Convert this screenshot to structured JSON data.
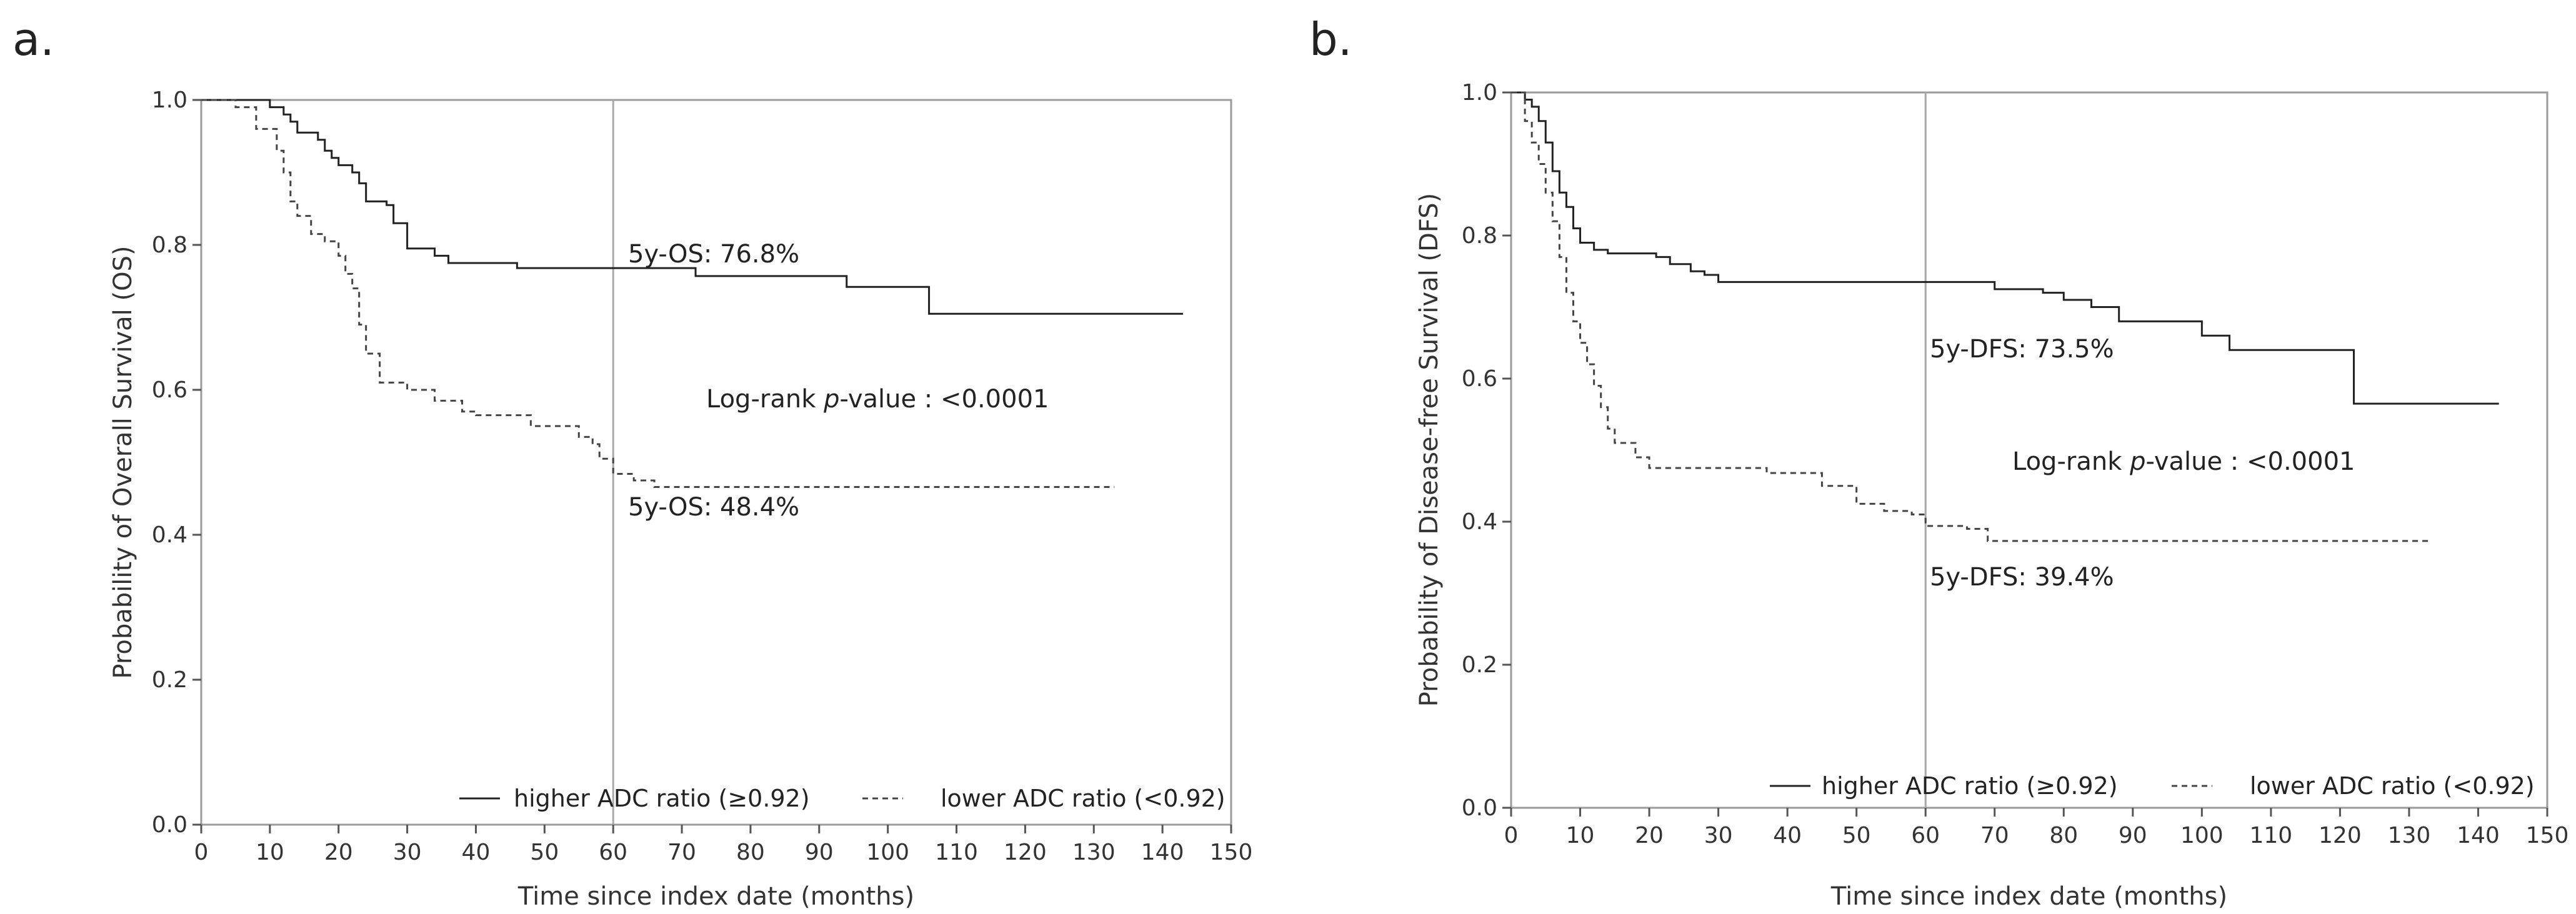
{
  "chart_data": [
    {
      "type": "line",
      "panel_label": "a.",
      "title": "",
      "xlabel": "Time since index date (months)",
      "ylabel": "Probability of Overall Survival (OS)",
      "xlim": [
        0,
        150
      ],
      "ylim": [
        0,
        1
      ],
      "xticks": [
        0,
        10,
        20,
        30,
        40,
        50,
        60,
        70,
        80,
        90,
        100,
        110,
        120,
        130,
        140,
        150
      ],
      "yticks": [
        "0.0",
        "0.2",
        "0.4",
        "0.6",
        "0.8",
        "1.0"
      ],
      "grid": false,
      "reference_line_x": 60,
      "series": [
        {
          "name": "higher ADC ratio (≥0.92)",
          "style": "solid",
          "points": [
            [
              0,
              1.0
            ],
            [
              5,
              1.0
            ],
            [
              10,
              0.99
            ],
            [
              12,
              0.98
            ],
            [
              13,
              0.97
            ],
            [
              14,
              0.955
            ],
            [
              17,
              0.945
            ],
            [
              18,
              0.93
            ],
            [
              19,
              0.92
            ],
            [
              20,
              0.91
            ],
            [
              22,
              0.9
            ],
            [
              23,
              0.885
            ],
            [
              24,
              0.86
            ],
            [
              27,
              0.855
            ],
            [
              28,
              0.83
            ],
            [
              30,
              0.795
            ],
            [
              34,
              0.785
            ],
            [
              36,
              0.775
            ],
            [
              46,
              0.768
            ],
            [
              60,
              0.768
            ],
            [
              70,
              0.768
            ],
            [
              72,
              0.757
            ],
            [
              94,
              0.742
            ],
            [
              106,
              0.705
            ],
            [
              143,
              0.705
            ]
          ]
        },
        {
          "name": "lower ADC ratio (<0.92)",
          "style": "dashed",
          "points": [
            [
              0,
              1.0
            ],
            [
              5,
              0.99
            ],
            [
              8,
              0.96
            ],
            [
              11,
              0.93
            ],
            [
              12,
              0.9
            ],
            [
              13,
              0.86
            ],
            [
              14,
              0.84
            ],
            [
              16,
              0.815
            ],
            [
              18,
              0.805
            ],
            [
              20,
              0.785
            ],
            [
              21,
              0.76
            ],
            [
              22,
              0.74
            ],
            [
              23,
              0.69
            ],
            [
              24,
              0.65
            ],
            [
              26,
              0.61
            ],
            [
              30,
              0.6
            ],
            [
              34,
              0.585
            ],
            [
              38,
              0.57
            ],
            [
              40,
              0.565
            ],
            [
              48,
              0.55
            ],
            [
              55,
              0.535
            ],
            [
              57,
              0.525
            ],
            [
              58,
              0.505
            ],
            [
              60,
              0.484
            ],
            [
              63,
              0.475
            ],
            [
              66,
              0.466
            ],
            [
              133,
              0.466
            ]
          ]
        }
      ],
      "annotations": {
        "high": "5y-OS: 76.8%",
        "low": "5y-OS: 48.4%",
        "logrank_prefix": "Log-rank",
        "logrank_p": "p",
        "logrank_suffix": "-value : <0.0001"
      },
      "legend": {
        "position": "bottom-right",
        "high": "higher ADC ratio (≥0.92)",
        "low": "lower ADC ratio (<0.92)"
      }
    },
    {
      "type": "line",
      "panel_label": "b.",
      "title": "",
      "xlabel": "Time since index date (months)",
      "ylabel": "Probability of Disease-free Survival (DFS)",
      "xlim": [
        0,
        150
      ],
      "ylim": [
        0,
        1
      ],
      "xticks": [
        0,
        10,
        20,
        30,
        40,
        50,
        60,
        70,
        80,
        90,
        100,
        110,
        120,
        130,
        140,
        150
      ],
      "yticks": [
        "0.0",
        "0.2",
        "0.4",
        "0.6",
        "0.8",
        "1.0"
      ],
      "grid": false,
      "reference_line_x": 60,
      "series": [
        {
          "name": "higher ADC ratio (≥0.92)",
          "style": "solid",
          "points": [
            [
              0,
              1.0
            ],
            [
              2,
              0.99
            ],
            [
              3,
              0.98
            ],
            [
              4,
              0.96
            ],
            [
              5,
              0.93
            ],
            [
              6,
              0.89
            ],
            [
              7,
              0.86
            ],
            [
              8,
              0.84
            ],
            [
              9,
              0.81
            ],
            [
              10,
              0.79
            ],
            [
              12,
              0.78
            ],
            [
              14,
              0.775
            ],
            [
              21,
              0.77
            ],
            [
              23,
              0.76
            ],
            [
              26,
              0.75
            ],
            [
              28,
              0.745
            ],
            [
              30,
              0.735
            ],
            [
              60,
              0.735
            ],
            [
              70,
              0.725
            ],
            [
              77,
              0.72
            ],
            [
              80,
              0.71
            ],
            [
              84,
              0.7
            ],
            [
              88,
              0.68
            ],
            [
              100,
              0.66
            ],
            [
              104,
              0.64
            ],
            [
              122,
              0.565
            ],
            [
              143,
              0.565
            ]
          ]
        },
        {
          "name": "lower ADC ratio (<0.92)",
          "style": "dashed",
          "points": [
            [
              0,
              1.0
            ],
            [
              2,
              0.96
            ],
            [
              3,
              0.93
            ],
            [
              4,
              0.9
            ],
            [
              5,
              0.86
            ],
            [
              6,
              0.82
            ],
            [
              7,
              0.77
            ],
            [
              8,
              0.72
            ],
            [
              9,
              0.68
            ],
            [
              10,
              0.65
            ],
            [
              11,
              0.62
            ],
            [
              12,
              0.59
            ],
            [
              13,
              0.56
            ],
            [
              14,
              0.53
            ],
            [
              15,
              0.51
            ],
            [
              18,
              0.49
            ],
            [
              20,
              0.475
            ],
            [
              37,
              0.468
            ],
            [
              45,
              0.45
            ],
            [
              50,
              0.425
            ],
            [
              54,
              0.415
            ],
            [
              58,
              0.41
            ],
            [
              60,
              0.394
            ],
            [
              66,
              0.39
            ],
            [
              69,
              0.373
            ],
            [
              133,
              0.373
            ]
          ]
        }
      ],
      "annotations": {
        "high": "5y-DFS: 73.5%",
        "low": "5y-DFS: 39.4%",
        "logrank_prefix": "Log-rank",
        "logrank_p": "p",
        "logrank_suffix": "-value : <0.0001"
      },
      "legend": {
        "position": "bottom-right",
        "high": "higher ADC ratio (≥0.92)",
        "low": "lower ADC ratio (<0.92)"
      }
    }
  ]
}
